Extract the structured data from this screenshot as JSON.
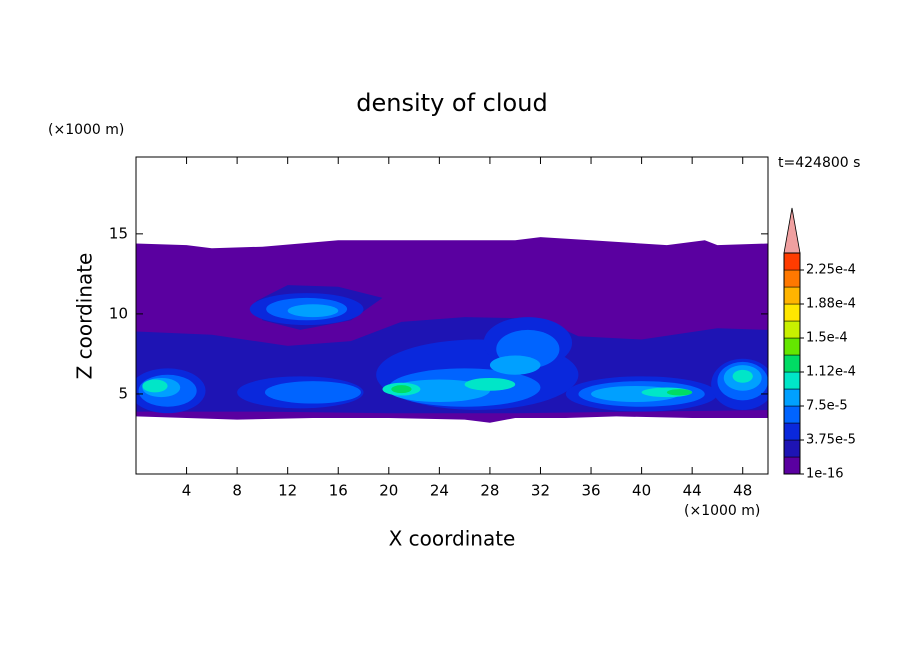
{
  "chart_data": {
    "type": "contour",
    "title": "density of cloud",
    "time_label": "t=424800 s",
    "xlabel": "X coordinate",
    "ylabel": "Z coordinate",
    "x_unit": "(×1000 m)",
    "y_unit": "(×1000 m)",
    "xlim": [
      0,
      50
    ],
    "ylim": [
      0,
      19.8
    ],
    "xticks": [
      4,
      8,
      12,
      16,
      20,
      24,
      28,
      32,
      36,
      40,
      44,
      48
    ],
    "yticks": [
      5,
      10,
      15
    ],
    "colorbar": {
      "levels": [
        1e-16,
        1.875e-05,
        3.75e-05,
        5.625e-05,
        7.5e-05,
        9.375e-05,
        0.0001125,
        0.00013125,
        0.00015,
        0.00016875,
        0.0001875,
        0.00020625,
        0.000225,
        0.00024375
      ],
      "colors": [
        "#5a00a0",
        "#1e14b4",
        "#0a28dc",
        "#0064ff",
        "#00a0ff",
        "#00e6c8",
        "#00dc64",
        "#64e600",
        "#c8f000",
        "#ffe600",
        "#ffb400",
        "#ff7800",
        "#ff3c00",
        "#f0a0a0"
      ],
      "ticks": [
        {
          "value": 1e-16,
          "label": "1e-16"
        },
        {
          "value": 3.75e-05,
          "label": "3.75e-5"
        },
        {
          "value": 7.5e-05,
          "label": "7.5e-5"
        },
        {
          "value": 0.0001125,
          "label": "1.12e-4"
        },
        {
          "value": 0.00015,
          "label": "1.5e-4"
        },
        {
          "value": 0.0001875,
          "label": "1.88e-4"
        },
        {
          "value": 0.000225,
          "label": "2.25e-4"
        }
      ]
    }
  }
}
